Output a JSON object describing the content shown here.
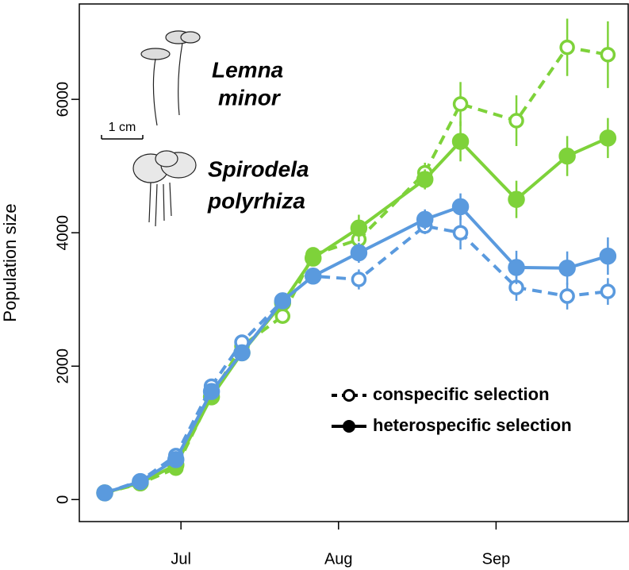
{
  "chart_data": {
    "type": "line",
    "ylabel": "Population size",
    "scale_label": "1 cm",
    "xlim": [
      -20,
      88
    ],
    "ylim": [
      -330,
      7430
    ],
    "xticks": [
      {
        "value": 0,
        "label": "Jul"
      },
      {
        "value": 31,
        "label": "Aug"
      },
      {
        "value": 62,
        "label": "Sep"
      }
    ],
    "yticks": [
      0,
      2000,
      4000,
      6000
    ],
    "x": [
      -15,
      -8,
      -1,
      6,
      12,
      20,
      26,
      35,
      48,
      55,
      66,
      76,
      84
    ],
    "species": [
      {
        "label": [
          "Lemna",
          "minor"
        ],
        "color": "#7ed23a"
      },
      {
        "label": [
          "Spirodela",
          "polyrhiza"
        ],
        "color": "#5a9ade"
      }
    ],
    "legend": [
      {
        "label": "conspecific selection",
        "dashed": true,
        "filled": false
      },
      {
        "label": "heterospecific selection",
        "dashed": false,
        "filled": true
      }
    ],
    "series": [
      {
        "species": 0,
        "selection": 0,
        "values": [
          100,
          240,
          470,
          1560,
          2300,
          2750,
          3670,
          3900,
          4900,
          5930,
          5680,
          6780,
          6670
        ],
        "errors": [
          40,
          40,
          50,
          80,
          80,
          100,
          100,
          150,
          150,
          330,
          380,
          430,
          500
        ]
      },
      {
        "species": 0,
        "selection": 1,
        "values": [
          100,
          250,
          520,
          1540,
          2200,
          2950,
          3620,
          4070,
          4800,
          5370,
          4500,
          5150,
          5420
        ],
        "errors": [
          40,
          40,
          50,
          80,
          80,
          100,
          100,
          200,
          150,
          300,
          280,
          300,
          300
        ]
      },
      {
        "species": 1,
        "selection": 0,
        "values": [
          100,
          280,
          660,
          1700,
          2360,
          2980,
          3350,
          3300,
          4100,
          4000,
          3180,
          3050,
          3120
        ],
        "errors": [
          40,
          40,
          50,
          80,
          80,
          100,
          100,
          150,
          120,
          250,
          200,
          200,
          200
        ]
      },
      {
        "species": 1,
        "selection": 1,
        "values": [
          100,
          270,
          600,
          1620,
          2200,
          2980,
          3350,
          3700,
          4200,
          4390,
          3480,
          3470,
          3650
        ],
        "errors": [
          40,
          40,
          50,
          80,
          80,
          100,
          100,
          150,
          150,
          200,
          250,
          250,
          280
        ]
      }
    ]
  }
}
